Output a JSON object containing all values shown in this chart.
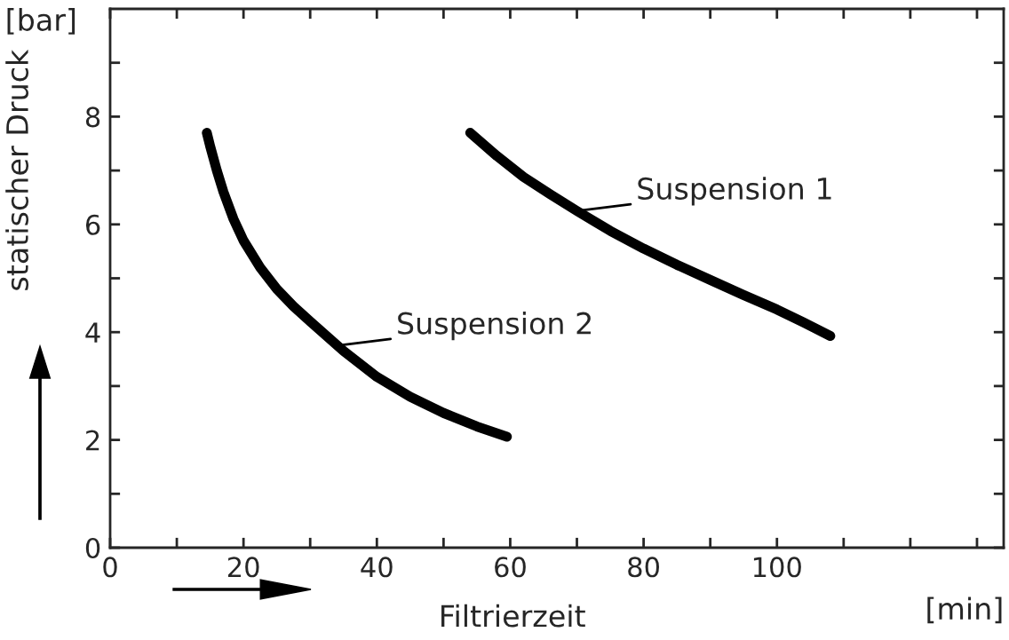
{
  "chart_data": {
    "type": "line",
    "xlabel": "Filtrierzeit",
    "ylabel": "statischer Druck",
    "series": [
      {
        "color": "#000000",
        "x": [
          54,
          58,
          62,
          66,
          70,
          75,
          80,
          85,
          90,
          95,
          100,
          104,
          108
        ],
        "values": [
          7.7,
          7.27,
          6.88,
          6.56,
          6.25,
          5.88,
          5.55,
          5.25,
          4.97,
          4.69,
          4.42,
          4.18,
          3.93
        ]
      },
      {
        "color": "#000000",
        "x": [
          14.5,
          15,
          16,
          17,
          18.5,
          20,
          22.5,
          25,
          27.5,
          30,
          35,
          40,
          45,
          50,
          55,
          59.5
        ],
        "values": [
          7.7,
          7.45,
          7.0,
          6.6,
          6.1,
          5.7,
          5.2,
          4.8,
          4.48,
          4.2,
          3.65,
          3.17,
          2.8,
          2.5,
          2.25,
          2.06
        ]
      }
    ],
    "annotations": [
      {
        "text": "Suspension 1",
        "x": 70,
        "y": 6.25
      },
      {
        "text": "Suspension 2",
        "x": 34,
        "y": 3.75
      },
      "[bar]",
      "[min]"
    ],
    "xlim": [
      0,
      134
    ],
    "ylim": [
      0,
      10
    ],
    "xticks": [
      0,
      {
        "value": 10,
        "label": null
      },
      20,
      {
        "value": 30,
        "label": null
      },
      40,
      {
        "value": 50,
        "label": null
      },
      60,
      {
        "value": 70,
        "label": null
      },
      80,
      {
        "value": 90,
        "label": null
      },
      100,
      {
        "value": 110,
        "label": null
      },
      {
        "value": 120,
        "label": null
      },
      {
        "value": 130,
        "label": null
      }
    ],
    "yticks": [
      0,
      {
        "value": 1,
        "label": null
      },
      2,
      {
        "value": 3,
        "label": null
      },
      4,
      {
        "value": 5,
        "label": null
      },
      6,
      {
        "value": 7,
        "label": null
      },
      8,
      {
        "value": 9,
        "label": null
      }
    ],
    "grid": false,
    "legend": false,
    "marker": "none",
    "line_style": "solid"
  }
}
